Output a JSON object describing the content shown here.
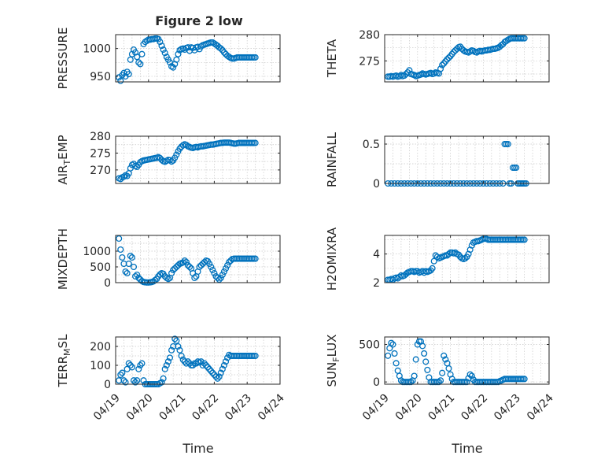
{
  "figure": {
    "title": "Figure 2 low",
    "marker_color": "#0072BD",
    "x_tick_labels": [
      "04/19",
      "04/20",
      "04/21",
      "04/22",
      "04/23",
      "04/24"
    ],
    "xlabel": "Time"
  },
  "chart_data": [
    {
      "type": "scatter",
      "ylabel": "PRESSURE",
      "xlim": [
        0,
        5
      ],
      "ylim": [
        940,
        1025
      ],
      "y_ticks": [
        950,
        1000
      ],
      "grid": true,
      "x": [
        0.1,
        0.15,
        0.2,
        0.25,
        0.3,
        0.35,
        0.4,
        0.45,
        0.5,
        0.55,
        0.6,
        0.65,
        0.7,
        0.75,
        0.8,
        0.85,
        0.9,
        0.95,
        1.0,
        1.05,
        1.1,
        1.15,
        1.2,
        1.25,
        1.3,
        1.35,
        1.4,
        1.45,
        1.5,
        1.55,
        1.6,
        1.65,
        1.7,
        1.75,
        1.8,
        1.85,
        1.9,
        1.95,
        2.0,
        2.05,
        2.1,
        2.15,
        2.2,
        2.25,
        2.3,
        2.35,
        2.4,
        2.45,
        2.5,
        2.55,
        2.6,
        2.65,
        2.7,
        2.75,
        2.8,
        2.85,
        2.9,
        2.95,
        3.0,
        3.05,
        3.1,
        3.15,
        3.2,
        3.25,
        3.3,
        3.35,
        3.4,
        3.45,
        3.5,
        3.55,
        3.6,
        3.65,
        3.7,
        3.75,
        3.8,
        3.85,
        3.9,
        3.95,
        4.0,
        4.05,
        4.1,
        4.15,
        4.2,
        4.25
      ],
      "y": [
        948,
        942,
        952,
        956,
        950,
        958,
        954,
        980,
        990,
        998,
        993,
        985,
        975,
        972,
        990,
        1008,
        1012,
        1014,
        1016,
        1016,
        1017,
        1017,
        1018,
        1018,
        1017,
        1012,
        1005,
        998,
        992,
        985,
        980,
        975,
        968,
        966,
        972,
        980,
        990,
        997,
        999,
        1000,
        998,
        1001,
        1002,
        996,
        1002,
        1001,
        997,
        1002,
        1003,
        999,
        1004,
        1006,
        1007,
        1008,
        1009,
        1010,
        1011,
        1011,
        1009,
        1007,
        1005,
        1002,
        1000,
        997,
        993,
        990,
        987,
        985,
        983,
        982,
        982,
        983,
        984,
        984,
        984,
        984,
        984,
        984,
        984,
        984,
        984,
        984,
        984,
        984
      ]
    },
    {
      "type": "scatter",
      "ylabel": "THETA",
      "xlim": [
        0,
        5
      ],
      "ylim": [
        271,
        280
      ],
      "y_ticks": [
        275,
        280
      ],
      "grid": true,
      "x": [
        0.1,
        0.15,
        0.2,
        0.25,
        0.3,
        0.35,
        0.4,
        0.45,
        0.5,
        0.55,
        0.6,
        0.65,
        0.7,
        0.75,
        0.8,
        0.85,
        0.9,
        0.95,
        1.0,
        1.05,
        1.1,
        1.15,
        1.2,
        1.25,
        1.3,
        1.35,
        1.4,
        1.45,
        1.5,
        1.55,
        1.6,
        1.65,
        1.7,
        1.75,
        1.8,
        1.85,
        1.9,
        1.95,
        2.0,
        2.05,
        2.1,
        2.15,
        2.2,
        2.25,
        2.3,
        2.35,
        2.4,
        2.45,
        2.5,
        2.55,
        2.6,
        2.65,
        2.7,
        2.75,
        2.8,
        2.85,
        2.9,
        2.95,
        3.0,
        3.05,
        3.1,
        3.15,
        3.2,
        3.25,
        3.3,
        3.35,
        3.4,
        3.45,
        3.5,
        3.55,
        3.6,
        3.65,
        3.7,
        3.75,
        3.8,
        3.85,
        3.9,
        3.95,
        4.0,
        4.05,
        4.1,
        4.15,
        4.2,
        4.25
      ],
      "y": [
        272.0,
        272.0,
        272.1,
        272.0,
        272.1,
        272.2,
        272.0,
        272.1,
        272.3,
        272.1,
        272.2,
        272.5,
        272.8,
        273.2,
        272.5,
        272.4,
        272.3,
        272.1,
        272.2,
        272.3,
        272.4,
        272.6,
        272.5,
        272.4,
        272.5,
        272.6,
        272.7,
        272.5,
        272.6,
        272.8,
        272.7,
        272.6,
        273.5,
        274.2,
        274.5,
        274.9,
        275.3,
        275.6,
        275.9,
        276.3,
        276.7,
        277.0,
        277.3,
        277.6,
        277.7,
        277.3,
        277.0,
        276.8,
        276.7,
        276.6,
        276.8,
        277.0,
        276.9,
        276.7,
        276.6,
        276.8,
        276.9,
        276.8,
        276.9,
        277.0,
        277.0,
        277.1,
        277.1,
        277.2,
        277.3,
        277.3,
        277.4,
        277.5,
        277.7,
        278.0,
        278.2,
        278.6,
        278.8,
        279.0,
        279.2,
        279.3,
        279.3,
        279.3,
        279.3,
        279.3,
        279.3,
        279.3,
        279.3,
        279.3
      ]
    },
    {
      "type": "scatter",
      "ylabel": "AIR_TEMP",
      "xlim": [
        0,
        5
      ],
      "ylim": [
        266,
        280
      ],
      "y_ticks": [
        270,
        275,
        280
      ],
      "grid": true,
      "x": [
        0.1,
        0.15,
        0.2,
        0.25,
        0.3,
        0.35,
        0.4,
        0.45,
        0.5,
        0.55,
        0.6,
        0.65,
        0.7,
        0.75,
        0.8,
        0.85,
        0.9,
        0.95,
        1.0,
        1.05,
        1.1,
        1.15,
        1.2,
        1.25,
        1.3,
        1.35,
        1.4,
        1.45,
        1.5,
        1.55,
        1.6,
        1.65,
        1.7,
        1.75,
        1.8,
        1.85,
        1.9,
        1.95,
        2.0,
        2.05,
        2.1,
        2.15,
        2.2,
        2.25,
        2.3,
        2.35,
        2.4,
        2.45,
        2.5,
        2.55,
        2.6,
        2.65,
        2.7,
        2.75,
        2.8,
        2.85,
        2.9,
        2.95,
        3.0,
        3.05,
        3.1,
        3.15,
        3.2,
        3.25,
        3.3,
        3.35,
        3.4,
        3.45,
        3.5,
        3.55,
        3.6,
        3.65,
        3.7,
        3.75,
        3.8,
        3.85,
        3.9,
        3.95,
        4.0,
        4.05,
        4.1,
        4.15,
        4.2,
        4.25
      ],
      "y": [
        267.5,
        267.3,
        267.8,
        268.0,
        268.4,
        268.2,
        269.0,
        270.5,
        271.5,
        271.8,
        271.2,
        270.9,
        271.5,
        272.3,
        272.6,
        272.8,
        272.9,
        273.0,
        273.1,
        273.2,
        273.3,
        273.4,
        273.5,
        273.6,
        273.8,
        273.5,
        273.0,
        272.6,
        272.4,
        272.7,
        273.0,
        272.9,
        272.5,
        272.8,
        273.6,
        274.5,
        275.5,
        276.3,
        276.9,
        277.3,
        277.6,
        277.4,
        277.0,
        276.8,
        276.6,
        276.5,
        276.7,
        276.8,
        276.7,
        276.9,
        277.0,
        277.0,
        277.1,
        277.2,
        277.3,
        277.4,
        277.5,
        277.5,
        277.6,
        277.7,
        277.8,
        277.9,
        278.0,
        278.0,
        278.1,
        278.1,
        278.1,
        278.1,
        278.0,
        277.9,
        277.8,
        277.8,
        277.9,
        278.0,
        278.0,
        278.0,
        278.0,
        278.0,
        278.0,
        278.0,
        278.0,
        278.0,
        278.0,
        278.0
      ]
    },
    {
      "type": "scatter",
      "ylabel": "RAINFALL",
      "xlim": [
        0,
        5
      ],
      "ylim": [
        0,
        0.6
      ],
      "y_ticks": [
        0,
        0.5
      ],
      "grid": true,
      "x": [
        0.1,
        0.2,
        0.3,
        0.4,
        0.5,
        0.6,
        0.7,
        0.8,
        0.9,
        1.0,
        1.1,
        1.2,
        1.3,
        1.4,
        1.5,
        1.6,
        1.7,
        1.8,
        1.9,
        2.0,
        2.1,
        2.2,
        2.3,
        2.4,
        2.5,
        2.6,
        2.7,
        2.8,
        2.9,
        3.0,
        3.1,
        3.2,
        3.3,
        3.4,
        3.5,
        3.6,
        3.65,
        3.7,
        3.75,
        3.8,
        3.85,
        3.9,
        3.95,
        4.0,
        4.05,
        4.1,
        4.15,
        4.2,
        4.25,
        4.3
      ],
      "y": [
        0,
        0,
        0,
        0,
        0,
        0,
        0,
        0,
        0,
        0,
        0,
        0,
        0,
        0,
        0,
        0,
        0,
        0,
        0,
        0,
        0,
        0,
        0,
        0,
        0,
        0,
        0,
        0,
        0,
        0,
        0,
        0,
        0,
        0,
        0,
        0,
        0.5,
        0.5,
        0.5,
        0,
        0,
        0.2,
        0.2,
        0.2,
        0,
        0,
        0,
        0,
        0,
        0
      ]
    },
    {
      "type": "scatter",
      "ylabel": "MIXDEPTH",
      "xlim": [
        0,
        5
      ],
      "ylim": [
        0,
        1500
      ],
      "y_ticks": [
        0,
        500,
        1000
      ],
      "grid": true,
      "x": [
        0.1,
        0.15,
        0.2,
        0.25,
        0.3,
        0.35,
        0.4,
        0.45,
        0.5,
        0.55,
        0.6,
        0.65,
        0.7,
        0.75,
        0.8,
        0.85,
        0.9,
        0.95,
        1.0,
        1.05,
        1.1,
        1.15,
        1.2,
        1.25,
        1.3,
        1.35,
        1.4,
        1.45,
        1.5,
        1.55,
        1.6,
        1.65,
        1.7,
        1.75,
        1.8,
        1.85,
        1.9,
        1.95,
        2.0,
        2.05,
        2.1,
        2.15,
        2.2,
        2.25,
        2.3,
        2.35,
        2.4,
        2.45,
        2.5,
        2.55,
        2.6,
        2.65,
        2.7,
        2.75,
        2.8,
        2.85,
        2.9,
        2.95,
        3.0,
        3.05,
        3.1,
        3.15,
        3.2,
        3.25,
        3.3,
        3.35,
        3.4,
        3.45,
        3.5,
        3.55,
        3.6,
        3.65,
        3.7,
        3.75,
        3.8,
        3.85,
        3.9,
        3.95,
        4.0,
        4.05,
        4.1,
        4.15,
        4.2,
        4.25
      ],
      "y": [
        1400,
        1050,
        800,
        600,
        350,
        300,
        600,
        850,
        800,
        500,
        200,
        250,
        150,
        100,
        50,
        20,
        10,
        5,
        5,
        10,
        20,
        40,
        80,
        120,
        200,
        260,
        300,
        280,
        200,
        150,
        120,
        150,
        300,
        400,
        450,
        500,
        550,
        600,
        620,
        640,
        700,
        650,
        550,
        500,
        450,
        300,
        150,
        200,
        350,
        500,
        550,
        600,
        650,
        700,
        680,
        600,
        500,
        400,
        300,
        200,
        150,
        100,
        150,
        250,
        350,
        450,
        550,
        650,
        700,
        750,
        760,
        760,
        760,
        760,
        760,
        760,
        760,
        760,
        760,
        760,
        760,
        760,
        760,
        760
      ]
    },
    {
      "type": "scatter",
      "ylabel": "H2OMIXRA",
      "xlim": [
        0,
        5
      ],
      "ylim": [
        2,
        5.3
      ],
      "y_ticks": [
        2,
        4
      ],
      "grid": true,
      "x": [
        0.1,
        0.15,
        0.2,
        0.25,
        0.3,
        0.35,
        0.4,
        0.45,
        0.5,
        0.55,
        0.6,
        0.65,
        0.7,
        0.75,
        0.8,
        0.85,
        0.9,
        0.95,
        1.0,
        1.05,
        1.1,
        1.15,
        1.2,
        1.25,
        1.3,
        1.35,
        1.4,
        1.45,
        1.5,
        1.55,
        1.6,
        1.65,
        1.7,
        1.75,
        1.8,
        1.85,
        1.9,
        1.95,
        2.0,
        2.05,
        2.1,
        2.15,
        2.2,
        2.25,
        2.3,
        2.35,
        2.4,
        2.45,
        2.5,
        2.55,
        2.6,
        2.65,
        2.7,
        2.75,
        2.8,
        2.85,
        2.9,
        2.95,
        3.0,
        3.05,
        3.1,
        3.15,
        3.2,
        3.25,
        3.3,
        3.35,
        3.4,
        3.45,
        3.5,
        3.55,
        3.6,
        3.65,
        3.7,
        3.75,
        3.8,
        3.85,
        3.9,
        3.95,
        4.0,
        4.05,
        4.1,
        4.15,
        4.2,
        4.25
      ],
      "y": [
        2.2,
        2.2,
        2.25,
        2.2,
        2.3,
        2.35,
        2.3,
        2.4,
        2.5,
        2.45,
        2.5,
        2.6,
        2.7,
        2.75,
        2.8,
        2.8,
        2.75,
        2.8,
        2.8,
        2.7,
        2.75,
        2.8,
        2.7,
        2.8,
        2.75,
        2.8,
        2.85,
        3.0,
        3.5,
        3.9,
        3.8,
        3.7,
        3.75,
        3.8,
        3.85,
        3.9,
        3.9,
        4.0,
        4.1,
        4.1,
        4.05,
        4.1,
        4.0,
        3.95,
        3.8,
        3.7,
        3.65,
        3.7,
        3.8,
        4.0,
        4.3,
        4.6,
        4.8,
        4.85,
        4.9,
        4.9,
        4.95,
        5.0,
        5.05,
        5.1,
        5.05,
        5.0,
        5.0,
        5.0,
        5.0,
        5.0,
        5.0,
        5.0,
        5.0,
        5.0,
        5.0,
        5.0,
        5.0,
        5.0,
        5.0,
        5.0,
        5.0,
        5.0,
        5.0,
        5.0,
        5.0,
        5.0,
        5.0,
        5.0
      ]
    },
    {
      "type": "scatter",
      "ylabel": "TERR_MSL",
      "xlim": [
        0,
        5
      ],
      "ylim": [
        0,
        250
      ],
      "y_ticks": [
        0,
        100,
        200
      ],
      "grid": true,
      "x": [
        0.1,
        0.15,
        0.2,
        0.25,
        0.3,
        0.35,
        0.4,
        0.45,
        0.5,
        0.55,
        0.6,
        0.65,
        0.7,
        0.75,
        0.8,
        0.85,
        0.9,
        0.95,
        1.0,
        1.05,
        1.1,
        1.15,
        1.2,
        1.25,
        1.3,
        1.35,
        1.4,
        1.45,
        1.5,
        1.55,
        1.6,
        1.65,
        1.7,
        1.75,
        1.8,
        1.85,
        1.9,
        1.95,
        2.0,
        2.05,
        2.1,
        2.15,
        2.2,
        2.25,
        2.3,
        2.35,
        2.4,
        2.45,
        2.5,
        2.55,
        2.6,
        2.65,
        2.7,
        2.75,
        2.8,
        2.85,
        2.9,
        2.95,
        3.0,
        3.05,
        3.1,
        3.15,
        3.2,
        3.25,
        3.3,
        3.35,
        3.4,
        3.45,
        3.5,
        3.55,
        3.6,
        3.65,
        3.7,
        3.75,
        3.8,
        3.85,
        3.9,
        3.95,
        4.0,
        4.05,
        4.1,
        4.15,
        4.2,
        4.25
      ],
      "y": [
        20,
        50,
        60,
        20,
        10,
        80,
        110,
        100,
        90,
        20,
        10,
        20,
        80,
        100,
        110,
        20,
        0,
        0,
        0,
        0,
        0,
        0,
        0,
        0,
        0,
        5,
        10,
        30,
        80,
        100,
        120,
        140,
        180,
        200,
        240,
        230,
        200,
        180,
        150,
        130,
        120,
        110,
        120,
        110,
        100,
        100,
        110,
        110,
        120,
        115,
        120,
        100,
        110,
        100,
        90,
        80,
        70,
        60,
        50,
        40,
        30,
        40,
        60,
        80,
        100,
        120,
        140,
        155,
        150,
        150,
        150,
        150,
        150,
        150,
        150,
        150,
        150,
        150,
        150,
        150,
        150,
        150,
        150,
        150
      ]
    },
    {
      "type": "scatter",
      "ylabel": "SUN_FLUX",
      "xlim": [
        0,
        5
      ],
      "ylim": [
        -30,
        600
      ],
      "y_ticks": [
        0,
        500
      ],
      "grid": true,
      "x": [
        0.1,
        0.15,
        0.2,
        0.25,
        0.3,
        0.35,
        0.4,
        0.45,
        0.5,
        0.55,
        0.6,
        0.65,
        0.7,
        0.75,
        0.8,
        0.85,
        0.9,
        0.95,
        1.0,
        1.05,
        1.1,
        1.15,
        1.2,
        1.25,
        1.3,
        1.35,
        1.4,
        1.45,
        1.5,
        1.55,
        1.6,
        1.65,
        1.7,
        1.75,
        1.8,
        1.85,
        1.9,
        1.95,
        2.0,
        2.05,
        2.1,
        2.15,
        2.2,
        2.25,
        2.3,
        2.35,
        2.4,
        2.45,
        2.5,
        2.55,
        2.6,
        2.65,
        2.7,
        2.75,
        2.8,
        2.85,
        2.9,
        2.95,
        3.0,
        3.05,
        3.1,
        3.15,
        3.2,
        3.25,
        3.3,
        3.35,
        3.4,
        3.45,
        3.5,
        3.55,
        3.6,
        3.65,
        3.7,
        3.75,
        3.8,
        3.85,
        3.9,
        3.95,
        4.0,
        4.05,
        4.1,
        4.15,
        4.2,
        4.25
      ],
      "y": [
        350,
        450,
        520,
        500,
        380,
        250,
        150,
        80,
        20,
        0,
        0,
        0,
        0,
        0,
        0,
        20,
        80,
        300,
        500,
        540,
        540,
        480,
        380,
        270,
        160,
        60,
        0,
        0,
        0,
        0,
        0,
        0,
        20,
        120,
        350,
        300,
        250,
        180,
        100,
        40,
        0,
        0,
        0,
        0,
        0,
        0,
        0,
        0,
        0,
        50,
        100,
        80,
        30,
        0,
        0,
        0,
        0,
        0,
        0,
        0,
        0,
        0,
        0,
        0,
        0,
        0,
        0,
        0,
        10,
        20,
        30,
        40,
        40,
        40,
        40,
        40,
        40,
        40,
        40,
        40,
        40,
        40,
        40,
        40
      ]
    }
  ]
}
